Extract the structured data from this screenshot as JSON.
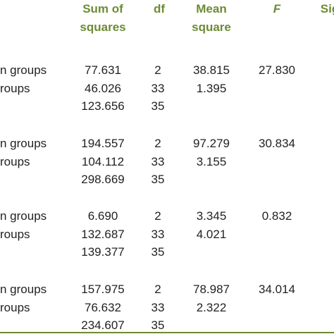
{
  "header": {
    "sum_of_squares": "Sum of\nsquares",
    "df": "df",
    "mean_square": "Mean\nsquare",
    "f": "F",
    "sig": "Sig"
  },
  "groups": [
    {
      "rows": [
        {
          "label": "n groups",
          "ss": "77.631",
          "df": "2",
          "ms": "38.815",
          "f": "27.830"
        },
        {
          "label": "roups",
          "ss": "46.026",
          "df": "33",
          "ms": "1.395"
        },
        {
          "ss": "123.656",
          "df": "35"
        }
      ]
    },
    {
      "rows": [
        {
          "label": "n groups",
          "ss": "194.557",
          "df": "2",
          "ms": "97.279",
          "f": "30.834"
        },
        {
          "label": "roups",
          "ss": "104.112",
          "df": "33",
          "ms": "3.155"
        },
        {
          "ss": "298.669",
          "df": "35"
        }
      ]
    },
    {
      "rows": [
        {
          "label": "n groups",
          "ss": "6.690",
          "df": "2",
          "ms": "3.345",
          "f": "0.832"
        },
        {
          "label": "roups",
          "ss": "132.687",
          "df": "33",
          "ms": "4.021"
        },
        {
          "ss": "139.377",
          "df": "35"
        }
      ]
    },
    {
      "rows": [
        {
          "label": "n groups",
          "ss": "157.975",
          "df": "2",
          "ms": "78.987",
          "f": "34.014"
        },
        {
          "label": "roups",
          "ss": "76.632",
          "df": "33",
          "ms": "2.322"
        },
        {
          "ss": "234.607",
          "df": "35"
        }
      ]
    }
  ]
}
